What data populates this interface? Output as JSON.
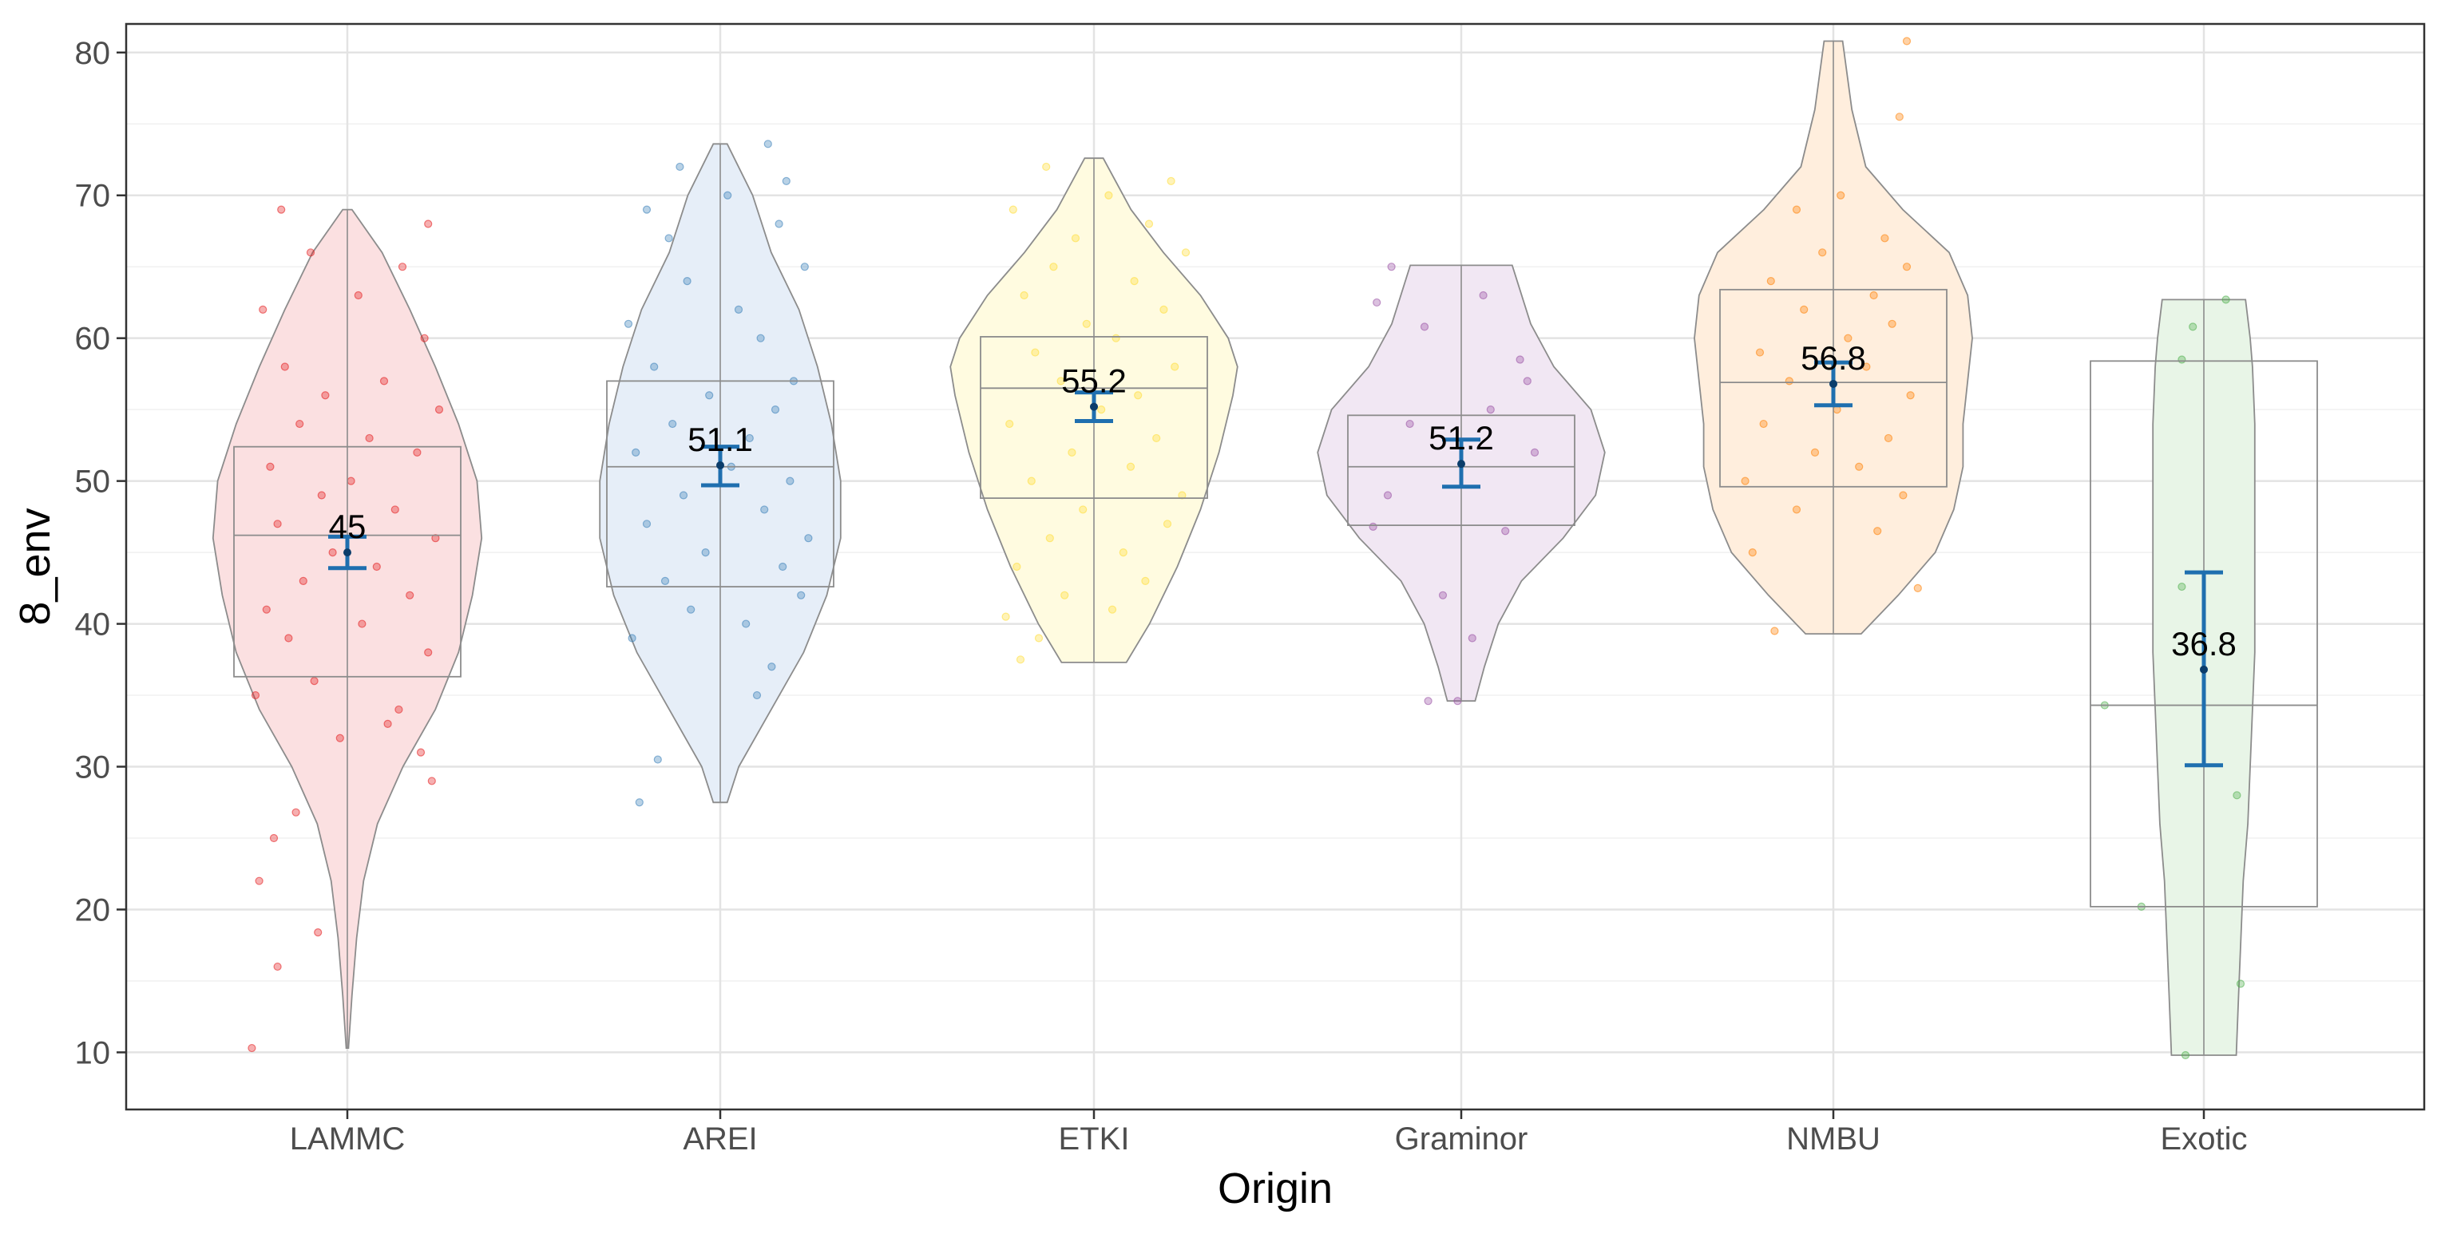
{
  "chart_data": {
    "type": "violin",
    "title": "",
    "xlabel": "Origin",
    "ylabel": "8_env",
    "ylim": [
      6,
      82
    ],
    "yticks": [
      10,
      20,
      30,
      40,
      50,
      60,
      70,
      80
    ],
    "ytick_labels": [
      "10",
      "20",
      "30",
      "40",
      "50",
      "60",
      "70",
      "80"
    ],
    "grid": true,
    "legend": "none",
    "categories": [
      "LAMMC",
      "AREI",
      "ETKI",
      "Graminor",
      "NMBU",
      "Exotic"
    ],
    "groups": [
      {
        "name": "LAMMC",
        "color": "#e41a1c",
        "fill": "#fbe0e1",
        "min": 10.3,
        "max": 69,
        "q1": 36.3,
        "median": 46.2,
        "q3": 52.4,
        "mean": 45,
        "mean_label": "45",
        "ci": [
          43.9,
          46.1
        ],
        "density": [
          [
            10.3,
            0.5
          ],
          [
            14,
            2
          ],
          [
            18,
            4
          ],
          [
            22,
            7
          ],
          [
            26,
            13
          ],
          [
            30,
            24
          ],
          [
            34,
            38
          ],
          [
            38,
            48
          ],
          [
            42,
            54
          ],
          [
            46,
            58
          ],
          [
            50,
            56
          ],
          [
            54,
            48
          ],
          [
            58,
            38
          ],
          [
            62,
            27
          ],
          [
            66,
            15
          ],
          [
            69,
            2
          ]
        ],
        "points": [
          [
            -26,
            10.3
          ],
          [
            -19,
            16
          ],
          [
            -8,
            18.4
          ],
          [
            -24,
            22
          ],
          [
            -20,
            25
          ],
          [
            -14,
            26.8
          ],
          [
            23,
            29
          ],
          [
            20,
            31
          ],
          [
            -2,
            32
          ],
          [
            11,
            33
          ],
          [
            -25,
            35
          ],
          [
            14,
            34
          ],
          [
            -9,
            36
          ],
          [
            22,
            38
          ],
          [
            -16,
            39
          ],
          [
            4,
            40
          ],
          [
            -22,
            41
          ],
          [
            17,
            42
          ],
          [
            -12,
            43
          ],
          [
            8,
            44
          ],
          [
            -4,
            45
          ],
          [
            24,
            46
          ],
          [
            -19,
            47
          ],
          [
            13,
            48
          ],
          [
            -7,
            49
          ],
          [
            1,
            50
          ],
          [
            -21,
            51
          ],
          [
            19,
            52
          ],
          [
            6,
            53
          ],
          [
            -13,
            54
          ],
          [
            25,
            55
          ],
          [
            -6,
            56
          ],
          [
            10,
            57
          ],
          [
            -17,
            58
          ],
          [
            21,
            60
          ],
          [
            -23,
            62
          ],
          [
            3,
            63
          ],
          [
            15,
            65
          ],
          [
            -10,
            66
          ],
          [
            22,
            68
          ],
          [
            -18,
            69
          ]
        ]
      },
      {
        "name": "AREI",
        "color": "#377eb8",
        "fill": "#e6eef8",
        "min": 27.5,
        "max": 73.6,
        "q1": 42.6,
        "median": 51,
        "q3": 57,
        "mean": 51.1,
        "mean_label": "51.1",
        "ci": [
          49.7,
          52.4
        ],
        "density": [
          [
            27.5,
            3
          ],
          [
            30,
            8
          ],
          [
            34,
            22
          ],
          [
            38,
            36
          ],
          [
            42,
            46
          ],
          [
            46,
            52
          ],
          [
            50,
            52
          ],
          [
            54,
            48
          ],
          [
            58,
            42
          ],
          [
            62,
            34
          ],
          [
            66,
            22
          ],
          [
            70,
            14
          ],
          [
            73.6,
            3
          ]
        ],
        "points": [
          [
            -22,
            27.5
          ],
          [
            -17,
            30.5
          ],
          [
            10,
            35
          ],
          [
            14,
            37
          ],
          [
            -24,
            39
          ],
          [
            7,
            40
          ],
          [
            -8,
            41
          ],
          [
            22,
            42
          ],
          [
            -15,
            43
          ],
          [
            17,
            44
          ],
          [
            -4,
            45
          ],
          [
            24,
            46
          ],
          [
            -20,
            47
          ],
          [
            12,
            48
          ],
          [
            -10,
            49
          ],
          [
            19,
            50
          ],
          [
            3,
            51
          ],
          [
            -23,
            52
          ],
          [
            8,
            53
          ],
          [
            -13,
            54
          ],
          [
            15,
            55
          ],
          [
            -3,
            56
          ],
          [
            20,
            57
          ],
          [
            -18,
            58
          ],
          [
            11,
            60
          ],
          [
            -25,
            61
          ],
          [
            5,
            62
          ],
          [
            -9,
            64
          ],
          [
            23,
            65
          ],
          [
            -14,
            67
          ],
          [
            16,
            68
          ],
          [
            -20,
            69
          ],
          [
            2,
            70
          ],
          [
            18,
            71
          ],
          [
            -11,
            72
          ],
          [
            13,
            73.6
          ]
        ]
      },
      {
        "name": "ETKI",
        "color": "#ffdd33",
        "fill": "#fffbe0",
        "min": 37.3,
        "max": 72.6,
        "q1": 48.8,
        "median": 56.5,
        "q3": 60.1,
        "mean": 55.2,
        "mean_label": "55.2",
        "ci": [
          54.2,
          56.2
        ],
        "density": [
          [
            37.3,
            14
          ],
          [
            40,
            24
          ],
          [
            44,
            36
          ],
          [
            48,
            46
          ],
          [
            52,
            54
          ],
          [
            56,
            60
          ],
          [
            58,
            62
          ],
          [
            60,
            58
          ],
          [
            63,
            46
          ],
          [
            66,
            30
          ],
          [
            69,
            16
          ],
          [
            72.6,
            4
          ]
        ],
        "points": [
          [
            -20,
            37.5
          ],
          [
            -15,
            39
          ],
          [
            -24,
            40.5
          ],
          [
            5,
            41
          ],
          [
            -8,
            42
          ],
          [
            14,
            43
          ],
          [
            -21,
            44
          ],
          [
            8,
            45
          ],
          [
            -12,
            46
          ],
          [
            20,
            47
          ],
          [
            -3,
            48
          ],
          [
            24,
            49
          ],
          [
            -17,
            50
          ],
          [
            10,
            51
          ],
          [
            -6,
            52
          ],
          [
            17,
            53
          ],
          [
            -23,
            54
          ],
          [
            2,
            55
          ],
          [
            12,
            56
          ],
          [
            -9,
            57
          ],
          [
            22,
            58
          ],
          [
            -16,
            59
          ],
          [
            6,
            60
          ],
          [
            -2,
            61
          ],
          [
            19,
            62
          ],
          [
            -19,
            63
          ],
          [
            11,
            64
          ],
          [
            -11,
            65
          ],
          [
            25,
            66
          ],
          [
            -5,
            67
          ],
          [
            15,
            68
          ],
          [
            -22,
            69
          ],
          [
            4,
            70
          ],
          [
            21,
            71
          ],
          [
            -13,
            72
          ]
        ]
      },
      {
        "name": "Graminor",
        "color": "#984ea3",
        "fill": "#f1e7f3",
        "min": 34.6,
        "max": 65.1,
        "q1": 46.9,
        "median": 51,
        "q3": 54.6,
        "mean": 51.2,
        "mean_label": "51.2",
        "ci": [
          49.6,
          52.9
        ],
        "density": [
          [
            34.6,
            6
          ],
          [
            37,
            10
          ],
          [
            40,
            16
          ],
          [
            43,
            26
          ],
          [
            46,
            44
          ],
          [
            49,
            58
          ],
          [
            52,
            62
          ],
          [
            55,
            56
          ],
          [
            58,
            40
          ],
          [
            61,
            30
          ],
          [
            65.1,
            22
          ]
        ],
        "points": [
          [
            -9,
            34.6
          ],
          [
            -1,
            34.6
          ],
          [
            3,
            39
          ],
          [
            -5,
            42
          ],
          [
            -24,
            46.8
          ],
          [
            12,
            46.5
          ],
          [
            -20,
            49
          ],
          [
            20,
            52
          ],
          [
            -14,
            54
          ],
          [
            8,
            55
          ],
          [
            18,
            57
          ],
          [
            -10,
            60.8
          ],
          [
            16,
            58.5
          ],
          [
            -23,
            62.5
          ],
          [
            6,
            63
          ],
          [
            -19,
            65
          ]
        ]
      },
      {
        "name": "NMBU",
        "color": "#ff7f00",
        "fill": "#ffeedd",
        "min": 39.3,
        "max": 80.8,
        "q1": 49.6,
        "median": 56.9,
        "q3": 63.4,
        "mean": 56.8,
        "mean_label": "56.8",
        "ci": [
          55.3,
          58.3
        ],
        "density": [
          [
            39.3,
            12
          ],
          [
            42,
            28
          ],
          [
            45,
            44
          ],
          [
            48,
            52
          ],
          [
            51,
            56
          ],
          [
            54,
            56
          ],
          [
            57,
            58
          ],
          [
            60,
            60
          ],
          [
            63,
            58
          ],
          [
            66,
            50
          ],
          [
            69,
            30
          ],
          [
            72,
            14
          ],
          [
            76,
            8
          ],
          [
            80.8,
            4
          ]
        ],
        "points": [
          [
            -16,
            39.5
          ],
          [
            23,
            42.5
          ],
          [
            -22,
            45
          ],
          [
            12,
            46.5
          ],
          [
            -10,
            48
          ],
          [
            19,
            49
          ],
          [
            -24,
            50
          ],
          [
            7,
            51
          ],
          [
            -5,
            52
          ],
          [
            15,
            53
          ],
          [
            -19,
            54
          ],
          [
            1,
            55
          ],
          [
            21,
            56
          ],
          [
            -12,
            57
          ],
          [
            9,
            58
          ],
          [
            -20,
            59
          ],
          [
            4,
            60
          ],
          [
            16,
            61
          ],
          [
            -8,
            62
          ],
          [
            11,
            63
          ],
          [
            -17,
            64
          ],
          [
            20,
            65
          ],
          [
            -3,
            66
          ],
          [
            14,
            67
          ],
          [
            -10,
            69
          ],
          [
            2,
            70
          ],
          [
            18,
            75.5
          ],
          [
            20,
            80.8
          ]
        ]
      },
      {
        "name": "Exotic",
        "color": "#4daf4a",
        "fill": "#e8f5e7",
        "min": 9.8,
        "max": 62.7,
        "q1": 20.2,
        "median": 34.3,
        "q3": 58.4,
        "mean": 36.8,
        "mean_label": "36.8",
        "ci": [
          30.1,
          43.6
        ],
        "density": [
          [
            9.8,
            14
          ],
          [
            14,
            15
          ],
          [
            18,
            16
          ],
          [
            22,
            17
          ],
          [
            26,
            19
          ],
          [
            30,
            20
          ],
          [
            34,
            21
          ],
          [
            38,
            22
          ],
          [
            42,
            22
          ],
          [
            46,
            22
          ],
          [
            50,
            22
          ],
          [
            54,
            22
          ],
          [
            58,
            21
          ],
          [
            60,
            20
          ],
          [
            62.7,
            18
          ]
        ],
        "points": [
          [
            -5,
            9.8
          ],
          [
            10,
            14.8
          ],
          [
            -17,
            20.2
          ],
          [
            -27,
            34.3
          ],
          [
            9,
            28
          ],
          [
            -6,
            42.6
          ],
          [
            -6,
            58.5
          ],
          [
            -3,
            60.8
          ],
          [
            6,
            62.7
          ]
        ]
      }
    ]
  }
}
